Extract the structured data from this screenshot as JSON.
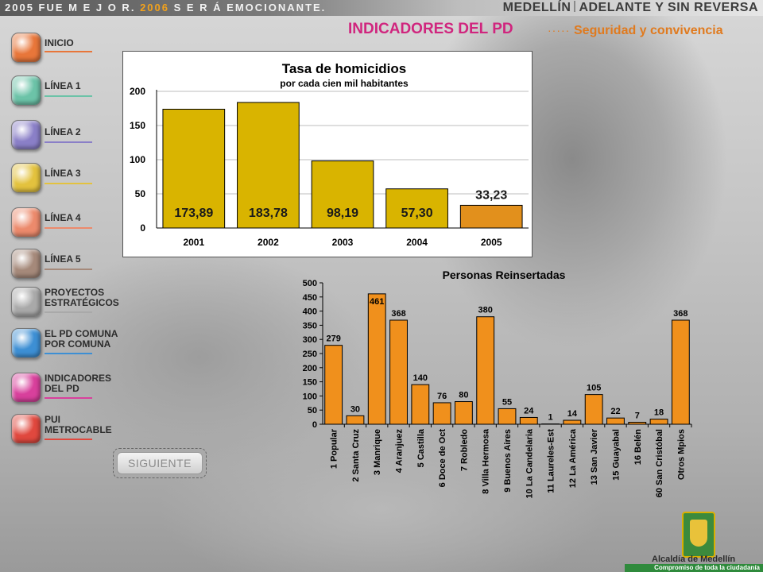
{
  "header": {
    "slogan_prefix": "2005 FUE M E J O R.",
    "slogan_mid": "2006",
    "slogan_suffix": "S E R Á EMOCIONANTE.",
    "brand_left": "MEDELLÍN",
    "brand_right": "ADELANTE Y SIN REVERSA"
  },
  "page": {
    "title": "INDICADORES DEL PD",
    "dots": "·····",
    "subtitle": "Seguridad y convivencia"
  },
  "nav": {
    "items": [
      {
        "label": "INICIO",
        "color": "#e8763a"
      },
      {
        "label": "LÍNEA 1",
        "color": "#6cc3a8"
      },
      {
        "label": "LÍNEA 2",
        "color": "#8a7fc7"
      },
      {
        "label": "LÍNEA 3",
        "color": "#e3c23e"
      },
      {
        "label": "LÍNEA 4",
        "color": "#ec8a6c"
      },
      {
        "label": "LÍNEA 5",
        "color": "#a5897a"
      },
      {
        "label": "PROYECTOS\nESTRATÉGICOS",
        "color": "#a9a9a9"
      },
      {
        "label": "EL PD COMUNA\nPOR COMUNA",
        "color": "#3d8fd4"
      },
      {
        "label": "INDICADORES\nDEL PD",
        "color": "#d8409c"
      },
      {
        "label": "PUI\nMETROCABLE",
        "color": "#e0483e"
      }
    ],
    "next_label": "SIGUIENTE"
  },
  "chart_data": [
    {
      "type": "bar",
      "title": "Tasa de homicidios",
      "subtitle": "por cada cien mil habitantes",
      "categories": [
        "2001",
        "2002",
        "2003",
        "2004",
        "2005"
      ],
      "values": [
        173.89,
        183.78,
        98.19,
        57.3,
        33.23
      ],
      "data_labels": [
        "173,89",
        "183,78",
        "98,19",
        "57,30",
        "33,23"
      ],
      "ylim": [
        0,
        200
      ],
      "yticks": [
        "0",
        "50",
        "100",
        "150",
        "200"
      ],
      "bar_color": "#d9b400",
      "last_bar_color": "#e2901c",
      "grid": true
    },
    {
      "type": "bar",
      "title": "Personas Reinsertadas",
      "categories": [
        "1 Popular",
        "2 Santa Cruz",
        "3 Manrique",
        "4 Aranjuez",
        "5 Castilla",
        "6 Doce de Oct",
        "7 Robledo",
        "8 Villa Hermosa",
        "9 Buenos Aires",
        "10 La Candelaria",
        "11 Laureles-Est",
        "12 La América",
        "13 San Javier",
        "15 Guayabal",
        "16 Belén",
        "60 San Cristóbal",
        "Otros Mpios"
      ],
      "values": [
        279,
        30,
        461,
        368,
        140,
        76,
        80,
        380,
        55,
        24,
        1,
        14,
        105,
        22,
        7,
        18,
        368
      ],
      "data_labels": [
        "279",
        "30",
        "461",
        "368",
        "140",
        "76",
        "80",
        "380",
        "55",
        "24",
        "1",
        "14",
        "105",
        "22",
        "7",
        "18",
        "368"
      ],
      "ylim": [
        0,
        500
      ],
      "yticks": [
        "0",
        "50",
        "100",
        "150",
        "200",
        "250",
        "300",
        "350",
        "400",
        "450",
        "500"
      ],
      "bar_color": "#f0901c",
      "grid": false
    }
  ],
  "footer": {
    "org": "Alcaldía de Medellín",
    "tagline": "Compromiso de toda la ciudadanía"
  }
}
